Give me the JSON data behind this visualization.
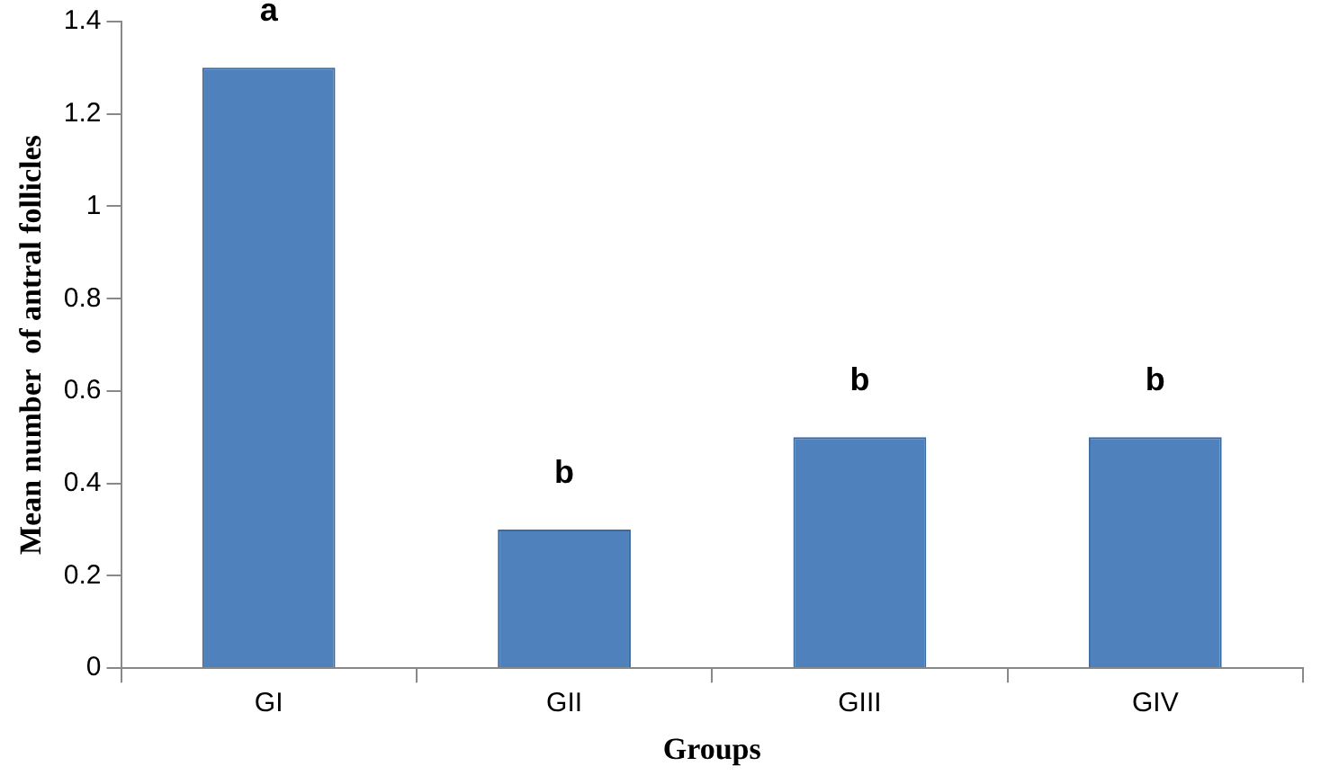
{
  "chart_data": {
    "type": "bar",
    "xlabel": "Groups",
    "ylabel": "Mean number  of antral follicles",
    "categories": [
      "GI",
      "GII",
      "GIII",
      "GIV"
    ],
    "values": [
      1.3,
      0.3,
      0.5,
      0.5
    ],
    "color": "#4f81bd",
    "ylim": [
      0,
      1.4
    ],
    "yticks": [
      0,
      0.2,
      0.4,
      0.6,
      0.8,
      1,
      1.2,
      1.4
    ],
    "grid": false,
    "annotations": [
      {
        "text": "a",
        "x": "GI",
        "y": 1.3
      },
      {
        "text": "b",
        "x": "GII",
        "y": 0.3
      },
      {
        "text": "b",
        "x": "GIII",
        "y": 0.5
      },
      {
        "text": "b",
        "x": "GIV",
        "y": 0.5
      }
    ]
  }
}
